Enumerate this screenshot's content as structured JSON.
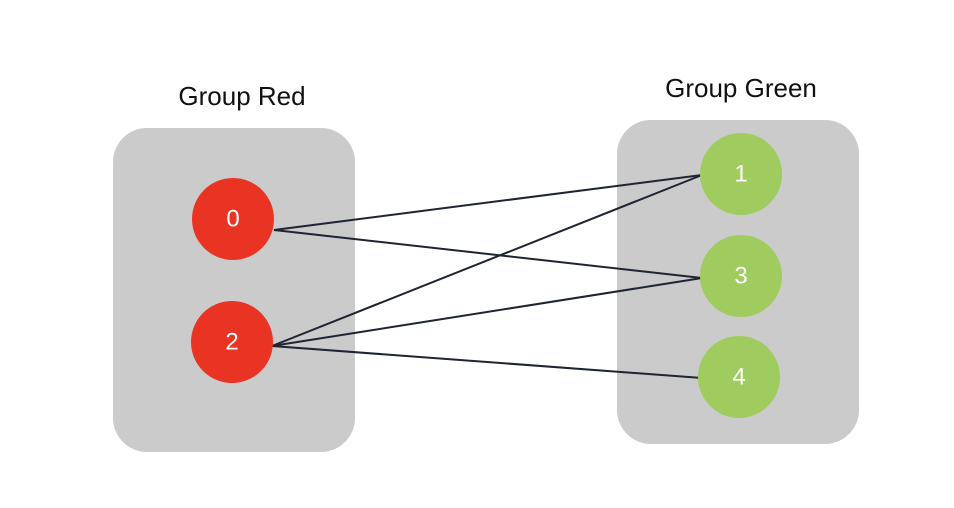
{
  "groups": [
    {
      "id": "red",
      "title": "Group Red",
      "color": "#e93323"
    },
    {
      "id": "green",
      "title": "Group Green",
      "color": "#9fcb5f"
    }
  ],
  "nodes": [
    {
      "id": "0",
      "label": "0",
      "group": "red"
    },
    {
      "id": "2",
      "label": "2",
      "group": "red"
    },
    {
      "id": "1",
      "label": "1",
      "group": "green"
    },
    {
      "id": "3",
      "label": "3",
      "group": "green"
    },
    {
      "id": "4",
      "label": "4",
      "group": "green"
    }
  ],
  "edges": [
    {
      "from": "0",
      "to": "1"
    },
    {
      "from": "0",
      "to": "3"
    },
    {
      "from": "2",
      "to": "1"
    },
    {
      "from": "2",
      "to": "3"
    },
    {
      "from": "2",
      "to": "4"
    }
  ],
  "colors": {
    "group_background": "#cbcbcb",
    "edge": "#1f2433",
    "node_text": "#ffffff",
    "title_text": "#111111"
  }
}
